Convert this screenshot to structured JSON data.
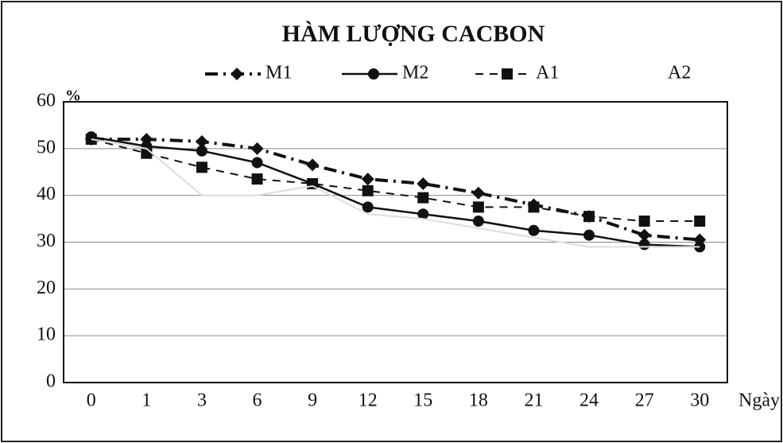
{
  "chart_data": {
    "type": "line",
    "title": "HÀM LƯỢNG CACBON",
    "x_label": "Ngày",
    "y_label": "%",
    "categories": [
      "0",
      "1",
      "3",
      "6",
      "9",
      "12",
      "15",
      "18",
      "21",
      "24",
      "27",
      "30"
    ],
    "series": [
      {
        "name": "M1",
        "color": "#111111",
        "values": [
          52,
          52,
          51.5,
          50,
          46.5,
          43.5,
          42.5,
          40.5,
          38,
          35.5,
          31.5,
          30.5
        ]
      },
      {
        "name": "M2",
        "color": "#111111",
        "values": [
          52.5,
          50.5,
          49.5,
          47,
          42.5,
          37.5,
          36,
          34.5,
          32.5,
          31.5,
          29.5,
          29
        ]
      },
      {
        "name": "A1",
        "color": "#111111",
        "values": [
          52,
          49,
          46,
          43.5,
          42.5,
          41,
          39.5,
          37.5,
          37.5,
          35.5,
          34.5,
          34.5
        ]
      },
      {
        "name": "A2",
        "color": "#dddddd",
        "values": [
          52,
          50,
          40,
          40,
          42,
          36,
          35,
          33,
          31,
          29,
          29,
          29
        ]
      }
    ],
    "ylim": [
      0,
      60
    ],
    "yticks": [
      0,
      10,
      20,
      30,
      40,
      50,
      60
    ],
    "grid": true
  }
}
